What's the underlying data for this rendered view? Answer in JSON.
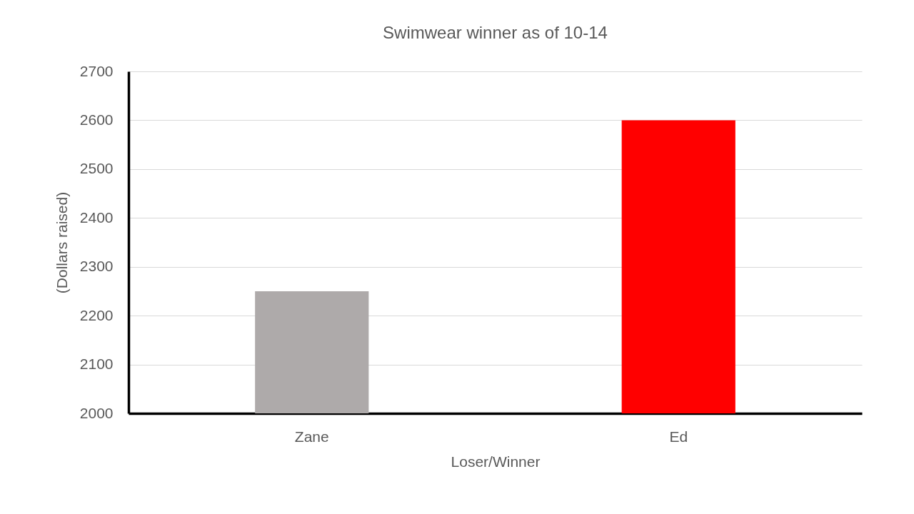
{
  "chart_data": {
    "type": "bar",
    "title": "Swimwear winner as of 10-14",
    "xlabel": "Loser/Winner",
    "ylabel": "(Dollars raised)",
    "categories": [
      "Zane",
      "Ed"
    ],
    "values": [
      2250,
      2600
    ],
    "colors": [
      "#aeaaaa",
      "#ff0000"
    ],
    "ylim": [
      2000,
      2700
    ],
    "yticks": [
      2000,
      2100,
      2200,
      2300,
      2400,
      2500,
      2600,
      2700
    ],
    "grid": "y"
  }
}
